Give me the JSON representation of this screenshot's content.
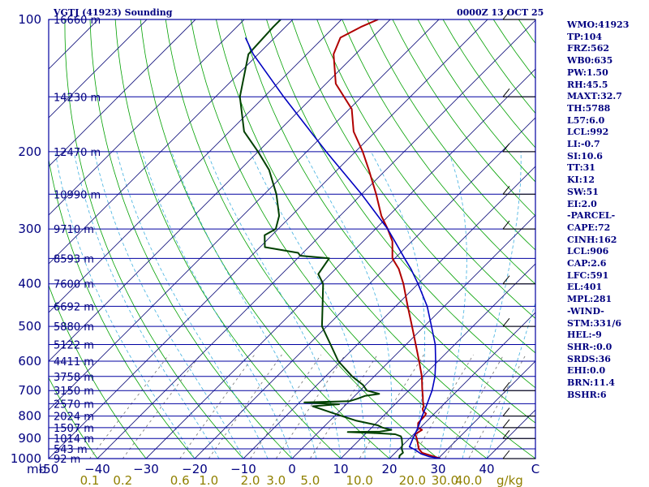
{
  "header": {
    "title": "VGTJ (41923) Sounding",
    "datetime": "0000Z 13 OCT 25"
  },
  "indices": [
    "WMO:41923",
    "TP:104",
    "FRZ:562",
    "WB0:635",
    "PW:1.50",
    "RH:45.5",
    "MAXT:32.7",
    "TH:5788",
    "L57:6.0",
    "LCL:992",
    "LI:-0.7",
    "SI:10.6",
    "TT:31",
    "KI:12",
    "SW:51",
    "EI:2.0",
    "-PARCEL-",
    "CAPE:72",
    "CINH:162",
    "LCL:906",
    "CAP:2.6",
    "LFC:591",
    "EL:401",
    "MPL:281",
    "-WIND-",
    "STM:331/6",
    "HEL:-9",
    "SHR-:0.0",
    "SRDS:36",
    "EHI:0.0",
    "BRN:11.4",
    "BSHR:6"
  ],
  "colors": {
    "isobar": "#0000a0",
    "isotherm": "#1b1b80",
    "dry_adiabat": "#00a000",
    "moist_adiabat": "#40b0e0",
    "mixing_ratio": "#707070",
    "temperature": "#b00000",
    "dewpoint": "#004000",
    "parcel": "#0000c0",
    "mixing_ratio_labels": "#908000",
    "text": "#000080"
  },
  "chart_data": {
    "type": "skew-t",
    "title": "VGTJ (41923) Sounding",
    "xlabel": "mb",
    "pressure_levels": [
      100,
      200,
      300,
      400,
      500,
      600,
      700,
      800,
      900,
      1000
    ],
    "pressure_labels": [
      "100",
      "200",
      "300",
      "400",
      "500",
      "600",
      "700",
      "800",
      "900",
      "1000"
    ],
    "height_labels": [
      {
        "p": 100,
        "text": "16660 m"
      },
      {
        "p": 150,
        "text": "14230 m"
      },
      {
        "p": 200,
        "text": "12470 m"
      },
      {
        "p": 250,
        "text": "10990 m"
      },
      {
        "p": 300,
        "text": "9710 m"
      },
      {
        "p": 350,
        "text": "8593 m"
      },
      {
        "p": 400,
        "text": "7600 m"
      },
      {
        "p": 450,
        "text": "6692 m"
      },
      {
        "p": 500,
        "text": "5880 m"
      },
      {
        "p": 550,
        "text": "5122 m"
      },
      {
        "p": 600,
        "text": "4411 m"
      },
      {
        "p": 650,
        "text": "3758 m"
      },
      {
        "p": 700,
        "text": "3150 m"
      },
      {
        "p": 750,
        "text": "2570 m"
      },
      {
        "p": 800,
        "text": "2024 m"
      },
      {
        "p": 850,
        "text": "1507 m"
      },
      {
        "p": 900,
        "text": "1014 m"
      },
      {
        "p": 950,
        "text": "543 m"
      },
      {
        "p": 1000,
        "text": "92 m"
      }
    ],
    "temperature_axis": {
      "values": [
        -50,
        -40,
        -30,
        -20,
        -10,
        0,
        10,
        20,
        30,
        40,
        50
      ],
      "labels": [
        "-50",
        "−40",
        "−30",
        "−20",
        "−10",
        "0",
        "10",
        "20",
        "30",
        "40",
        "C"
      ]
    },
    "mixing_ratio_axis": {
      "values": [
        0.1,
        0.2,
        0.6,
        1.0,
        2.0,
        3.0,
        5.0,
        10.0,
        20.0,
        30.0,
        40.0
      ],
      "labels": [
        "0.1",
        "0.2",
        "0.6",
        "1.0",
        "2.0",
        "3.0",
        "5.0",
        "10.0",
        "20.0",
        "30.0",
        "40.0"
      ],
      "unit": "g/kg"
    },
    "series": [
      {
        "key": "temperature",
        "points": [
          [
            1000,
            30.5
          ],
          [
            985,
            28
          ],
          [
            970,
            25.5
          ],
          [
            950,
            24
          ],
          [
            925,
            22.8
          ],
          [
            900,
            21.5
          ],
          [
            880,
            20.3
          ],
          [
            860,
            20.8
          ],
          [
            850,
            19.5
          ],
          [
            830,
            18.6
          ],
          [
            800,
            18.5
          ],
          [
            790,
            18.3
          ],
          [
            780,
            17.2
          ],
          [
            770,
            16.6
          ],
          [
            760,
            16.3
          ],
          [
            740,
            15.1
          ],
          [
            720,
            14.0
          ],
          [
            700,
            12.8
          ],
          [
            690,
            12.2
          ],
          [
            650,
            9.8
          ],
          [
            600,
            6.1
          ],
          [
            550,
            2.0
          ],
          [
            500,
            -2.5
          ],
          [
            450,
            -7.5
          ],
          [
            400,
            -13.0
          ],
          [
            370,
            -17.0
          ],
          [
            350,
            -20.5
          ],
          [
            320,
            -24.0
          ],
          [
            300,
            -27.5
          ],
          [
            280,
            -31.5
          ],
          [
            250,
            -37.0
          ],
          [
            220,
            -43.5
          ],
          [
            200,
            -48.5
          ],
          [
            180,
            -54.5
          ],
          [
            160,
            -59.5
          ],
          [
            140,
            -68.0
          ],
          [
            120,
            -74.5
          ],
          [
            110,
            -76.5
          ],
          [
            104,
            -74.5
          ],
          [
            100,
            -72.5
          ]
        ]
      },
      {
        "key": "dewpoint",
        "points": [
          [
            1000,
            22.0
          ],
          [
            985,
            21.5
          ],
          [
            970,
            21.6
          ],
          [
            950,
            20.5
          ],
          [
            930,
            19.8
          ],
          [
            900,
            18.4
          ],
          [
            890,
            17.8
          ],
          [
            880,
            16.2
          ],
          [
            875,
            12.0
          ],
          [
            870,
            6.0
          ],
          [
            868,
            12.5
          ],
          [
            860,
            14.5
          ],
          [
            850,
            12.2
          ],
          [
            840,
            10.8
          ],
          [
            820,
            5.5
          ],
          [
            800,
            1.5
          ],
          [
            780,
            -2.5
          ],
          [
            760,
            -6.5
          ],
          [
            752,
            -1.5
          ],
          [
            745,
            -9.0
          ],
          [
            740,
            0.0
          ],
          [
            730,
            1.2
          ],
          [
            720,
            2.1
          ],
          [
            712,
            4.6
          ],
          [
            700,
            1.4
          ],
          [
            680,
            -0.5
          ],
          [
            650,
            -4.5
          ],
          [
            600,
            -10.5
          ],
          [
            550,
            -15.5
          ],
          [
            500,
            -21.0
          ],
          [
            450,
            -25.0
          ],
          [
            400,
            -29.5
          ],
          [
            380,
            -32.5
          ],
          [
            350,
            -33.5
          ],
          [
            345,
            -40.0
          ],
          [
            340,
            -41.0
          ],
          [
            330,
            -49.0
          ],
          [
            310,
            -51.5
          ],
          [
            300,
            -50.5
          ],
          [
            280,
            -52.5
          ],
          [
            250,
            -57.5
          ],
          [
            220,
            -64.0
          ],
          [
            200,
            -70.0
          ],
          [
            180,
            -77.0
          ],
          [
            150,
            -85.0
          ],
          [
            120,
            -92.0
          ],
          [
            104,
            -92.5
          ],
          [
            100,
            -92.5
          ]
        ]
      },
      {
        "key": "parcel",
        "points": [
          [
            1000,
            30.5
          ],
          [
            990,
            27.8
          ],
          [
            975,
            25.5
          ],
          [
            955,
            23.5
          ],
          [
            940,
            21.7
          ],
          [
            920,
            21.2
          ],
          [
            900,
            20.7
          ],
          [
            850,
            19.5
          ],
          [
            800,
            18.0
          ],
          [
            750,
            16.5
          ],
          [
            700,
            14.8
          ],
          [
            650,
            12.5
          ],
          [
            600,
            9.5
          ],
          [
            550,
            6.0
          ],
          [
            500,
            1.5
          ],
          [
            450,
            -3.5
          ],
          [
            400,
            -10.0
          ],
          [
            370,
            -14.5
          ],
          [
            350,
            -18.0
          ],
          [
            320,
            -23.5
          ],
          [
            300,
            -27.5
          ],
          [
            250,
            -40.0
          ],
          [
            200,
            -56.0
          ],
          [
            150,
            -76.0
          ],
          [
            120,
            -91.0
          ],
          [
            110,
            -96.0
          ]
        ]
      }
    ],
    "wind_barbs_levels": [
      1000,
      900,
      850,
      800,
      700,
      500,
      400,
      300,
      250,
      200,
      150,
      100
    ],
    "grid": true
  }
}
